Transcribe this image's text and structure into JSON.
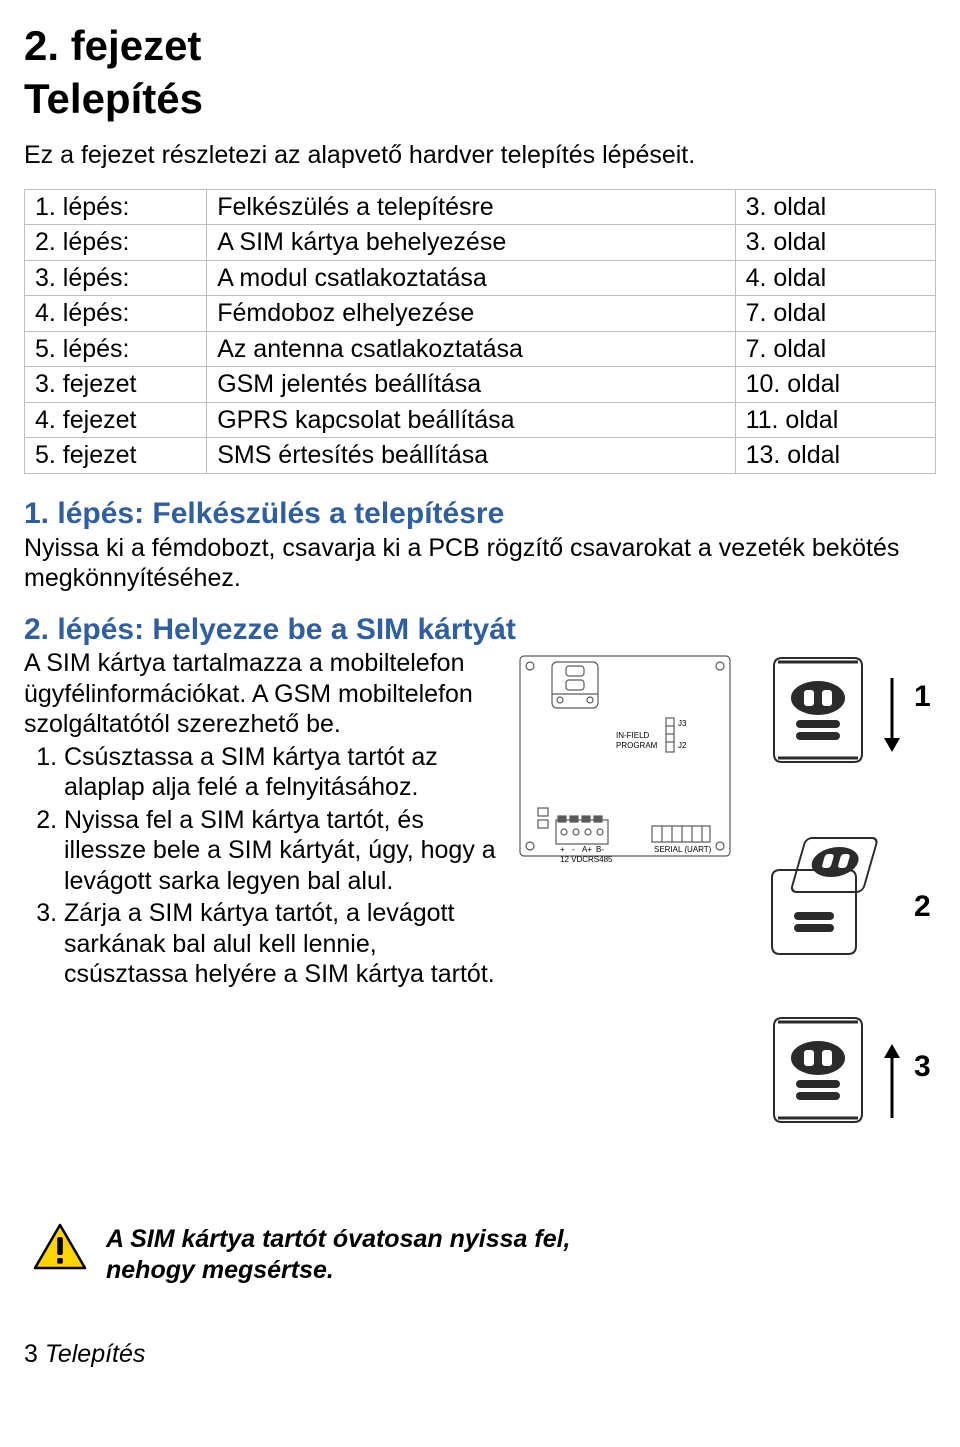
{
  "chapter_number": "2. fejezet",
  "chapter_title": "Telepítés",
  "intro": "Ez a fejezet részletezi az alapvető hardver telepítés lépéseit.",
  "table": {
    "rows": [
      {
        "c1": "1. lépés:",
        "c2": "Felkészülés a telepítésre",
        "c3": "3. oldal"
      },
      {
        "c1": "2. lépés:",
        "c2": "A SIM kártya behelyezése",
        "c3": "3. oldal"
      },
      {
        "c1": "3. lépés:",
        "c2": "A modul csatlakoztatása",
        "c3": "4. oldal"
      },
      {
        "c1": "4. lépés:",
        "c2": "Fémdoboz elhelyezése",
        "c3": "7. oldal"
      },
      {
        "c1": "5. lépés:",
        "c2": "Az antenna csatlakoztatása",
        "c3": "7. oldal"
      },
      {
        "c1": "3. fejezet",
        "c2": "GSM jelentés beállítása",
        "c3": "10. oldal"
      },
      {
        "c1": "4. fejezet",
        "c2": "GPRS kapcsolat beállítása",
        "c3": "11. oldal"
      },
      {
        "c1": "5. fejezet",
        "c2": "SMS értesítés beállítása",
        "c3": "13. oldal"
      }
    ],
    "border_color": "#bfbfbf"
  },
  "step1": {
    "heading": "1. lépés: Felkészülés a telepítésre",
    "text": "Nyissa ki a fémdobozt, csavarja ki a PCB rögzítő csavarokat a vezeték bekötés megkönnyítéséhez."
  },
  "step2": {
    "heading": "2. lépés: Helyezze be a SIM kártyát",
    "lead": "A SIM kártya tartalmazza a mobiltelefon ügyfélinformációkat. A GSM mobiltelefon szolgáltatótól szerezhető be.",
    "items": [
      "Csúsztassa a SIM kártya tartót az alaplap alja felé a felnyitásához.",
      "Nyissa fel a SIM kártya tartót, és illessze bele a SIM kártyát, úgy, hogy a levágott sarka legyen bal alul.",
      "Zárja a SIM kártya tartót, a levágott sarkának bal alul kell lennie, csúsztassa helyére a SIM kártya tartót."
    ]
  },
  "warning": "A SIM kártya tartót óvatosan nyissa fel, nehogy megsértse.",
  "diagram": {
    "labels": {
      "n1": "1",
      "n2": "2",
      "n3": "3"
    },
    "pcb_text": {
      "infield": "IN-FIELD",
      "program": "PROGRAM",
      "j3": "J3",
      "j2": "J2",
      "plus": "+",
      "minus": "- ",
      "ap": "A+",
      "bm": "B-",
      "vdc": "12 VDC",
      "rs485": "RS485",
      "serial": "SERIAL (UART)"
    },
    "colors": {
      "stroke": "#5a5a5a",
      "num": "#000000",
      "warn_fill": "#ffd400",
      "warn_stroke": "#000000"
    }
  },
  "footer": {
    "page": "3",
    "title": "Telepítés"
  }
}
